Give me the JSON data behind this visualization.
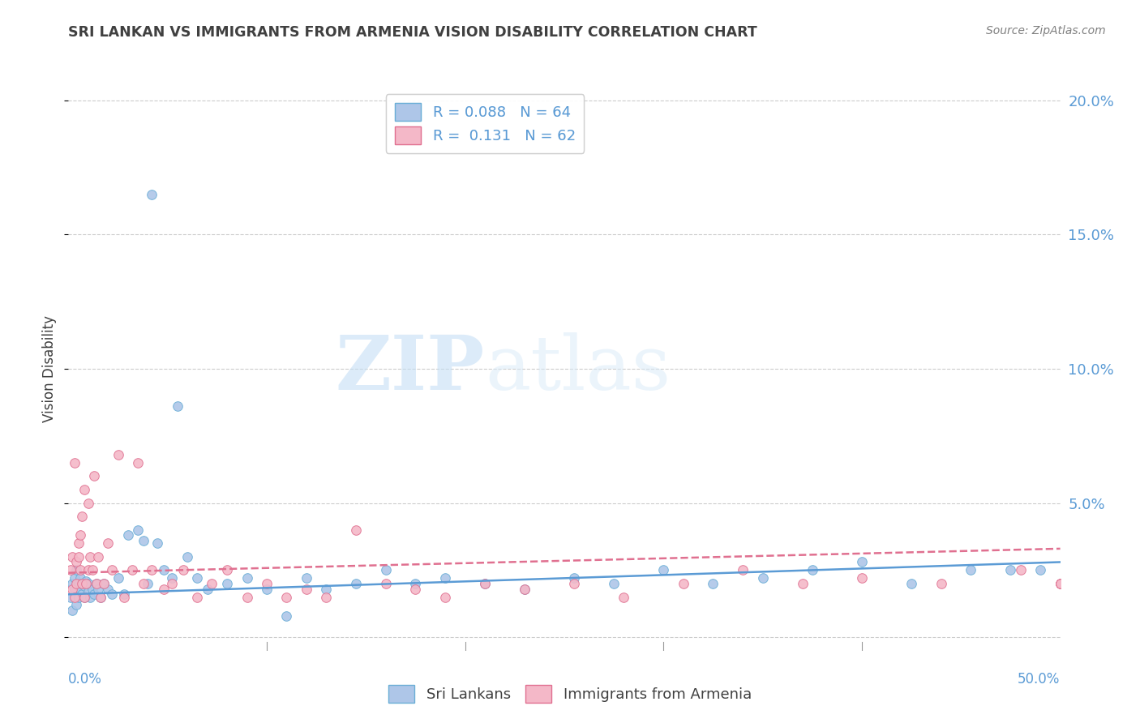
{
  "title": "SRI LANKAN VS IMMIGRANTS FROM ARMENIA VISION DISABILITY CORRELATION CHART",
  "source": "Source: ZipAtlas.com",
  "ylabel": "Vision Disability",
  "xlim": [
    0.0,
    0.5
  ],
  "ylim": [
    -0.005,
    0.205
  ],
  "yticks": [
    0.0,
    0.05,
    0.1,
    0.15,
    0.2
  ],
  "ytick_labels": [
    "",
    "5.0%",
    "10.0%",
    "15.0%",
    "20.0%"
  ],
  "xticks": [
    0.0,
    0.1,
    0.2,
    0.3,
    0.4,
    0.5
  ],
  "xtick_labels": [
    "0.0%",
    "",
    "",
    "",
    "",
    "50.0%"
  ],
  "watermark_zip": "ZIP",
  "watermark_atlas": "atlas",
  "legend_r1_label": "R = 0.088",
  "legend_r1_n": "N = 64",
  "legend_r2_label": "R =  0.131",
  "legend_r2_n": "N = 62",
  "color_blue_fill": "#aec6e8",
  "color_blue_edge": "#6aaed6",
  "color_pink_fill": "#f4b8c8",
  "color_pink_edge": "#e07090",
  "color_line_blue": "#5b9bd5",
  "color_line_pink": "#e07090",
  "bg_color": "#ffffff",
  "grid_color": "#cccccc",
  "title_color": "#404040",
  "axis_label_color": "#5b9bd5",
  "legend_value_color": "#5b9bd5",
  "source_color": "#808080",
  "sri_lankans_x": [
    0.001,
    0.002,
    0.002,
    0.003,
    0.003,
    0.004,
    0.004,
    0.005,
    0.005,
    0.006,
    0.006,
    0.007,
    0.007,
    0.008,
    0.008,
    0.009,
    0.01,
    0.01,
    0.011,
    0.012,
    0.013,
    0.014,
    0.015,
    0.016,
    0.018,
    0.02,
    0.022,
    0.025,
    0.028,
    0.03,
    0.035,
    0.038,
    0.04,
    0.042,
    0.045,
    0.048,
    0.052,
    0.055,
    0.06,
    0.065,
    0.07,
    0.08,
    0.09,
    0.1,
    0.11,
    0.12,
    0.13,
    0.145,
    0.16,
    0.175,
    0.19,
    0.21,
    0.23,
    0.255,
    0.275,
    0.3,
    0.325,
    0.35,
    0.375,
    0.4,
    0.425,
    0.455,
    0.475,
    0.49
  ],
  "sri_lankans_y": [
    0.015,
    0.02,
    0.01,
    0.018,
    0.022,
    0.012,
    0.025,
    0.015,
    0.02,
    0.018,
    0.022,
    0.016,
    0.02,
    0.015,
    0.019,
    0.021,
    0.017,
    0.02,
    0.015,
    0.018,
    0.016,
    0.02,
    0.018,
    0.015,
    0.02,
    0.018,
    0.016,
    0.022,
    0.016,
    0.038,
    0.04,
    0.036,
    0.02,
    0.165,
    0.035,
    0.025,
    0.022,
    0.086,
    0.03,
    0.022,
    0.018,
    0.02,
    0.022,
    0.018,
    0.008,
    0.022,
    0.018,
    0.02,
    0.025,
    0.02,
    0.022,
    0.02,
    0.018,
    0.022,
    0.02,
    0.025,
    0.02,
    0.022,
    0.025,
    0.028,
    0.02,
    0.025,
    0.025,
    0.025
  ],
  "armenia_x": [
    0.001,
    0.002,
    0.002,
    0.003,
    0.003,
    0.004,
    0.004,
    0.005,
    0.005,
    0.006,
    0.006,
    0.007,
    0.007,
    0.008,
    0.008,
    0.009,
    0.01,
    0.01,
    0.011,
    0.012,
    0.013,
    0.014,
    0.015,
    0.016,
    0.018,
    0.02,
    0.022,
    0.025,
    0.028,
    0.032,
    0.035,
    0.038,
    0.042,
    0.048,
    0.052,
    0.058,
    0.065,
    0.072,
    0.08,
    0.09,
    0.1,
    0.11,
    0.12,
    0.13,
    0.145,
    0.16,
    0.175,
    0.19,
    0.21,
    0.23,
    0.255,
    0.28,
    0.31,
    0.34,
    0.37,
    0.4,
    0.44,
    0.48,
    0.5,
    0.5,
    0.5,
    0.5
  ],
  "armenia_y": [
    0.025,
    0.018,
    0.03,
    0.015,
    0.065,
    0.02,
    0.028,
    0.03,
    0.035,
    0.025,
    0.038,
    0.02,
    0.045,
    0.015,
    0.055,
    0.02,
    0.05,
    0.025,
    0.03,
    0.025,
    0.06,
    0.02,
    0.03,
    0.015,
    0.02,
    0.035,
    0.025,
    0.068,
    0.015,
    0.025,
    0.065,
    0.02,
    0.025,
    0.018,
    0.02,
    0.025,
    0.015,
    0.02,
    0.025,
    0.015,
    0.02,
    0.015,
    0.018,
    0.015,
    0.04,
    0.02,
    0.018,
    0.015,
    0.02,
    0.018,
    0.02,
    0.015,
    0.02,
    0.025,
    0.02,
    0.022,
    0.02,
    0.025,
    0.02,
    0.02,
    0.02,
    0.02
  ],
  "trend_blue_start": 0.016,
  "trend_blue_end": 0.028,
  "trend_pink_start": 0.024,
  "trend_pink_end": 0.033
}
